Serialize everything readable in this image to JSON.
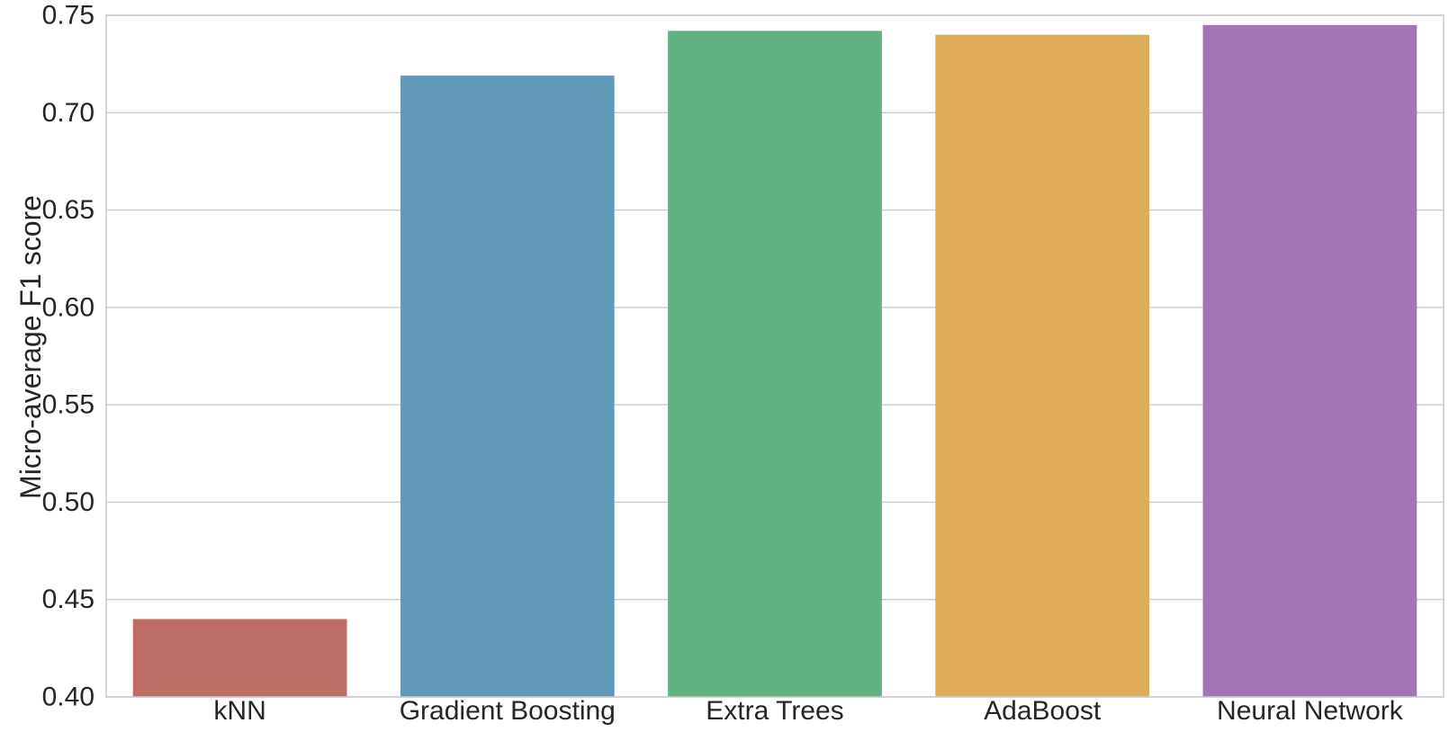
{
  "chart_data": {
    "type": "bar",
    "categories": [
      "kNN",
      "Gradient Boosting",
      "Extra Trees",
      "AdaBoost",
      "Neural Network"
    ],
    "values": [
      0.44,
      0.719,
      0.742,
      0.74,
      0.745
    ],
    "colors": [
      "#be6d64",
      "#6298ba",
      "#60b283",
      "#dfac5a",
      "#a275b2"
    ],
    "title": "",
    "xlabel": "",
    "ylabel": "Micro-average F1 score",
    "ylim": [
      0.4,
      0.75
    ],
    "yticks": [
      "0.40",
      "0.45",
      "0.50",
      "0.55",
      "0.60",
      "0.65",
      "0.70",
      "0.75"
    ],
    "grid": "horizontal",
    "legend": "none"
  }
}
